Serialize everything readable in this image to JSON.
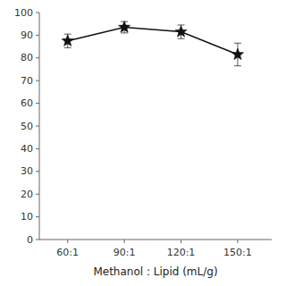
{
  "chart_data": {
    "type": "line",
    "x": [
      60,
      90,
      120,
      150
    ],
    "values": [
      87.5,
      93.5,
      91.5,
      81.5
    ],
    "errors": [
      3.0,
      2.5,
      3.0,
      5.0
    ],
    "xlabel": "Methanol : Lipid (mL/g)",
    "xlim": [
      45,
      168
    ],
    "xticks": [
      {
        "value": 60,
        "label": "60:1"
      },
      {
        "value": 90,
        "label": "90:1"
      },
      {
        "value": 120,
        "label": "120:1"
      },
      {
        "value": 150,
        "label": "150:1"
      }
    ],
    "ylim": [
      0,
      100
    ],
    "yticks": [
      0,
      10,
      20,
      30,
      40,
      50,
      60,
      70,
      80,
      90,
      100
    ],
    "color": "#111111",
    "marker": "star",
    "line_style": "solid",
    "grid": false
  }
}
